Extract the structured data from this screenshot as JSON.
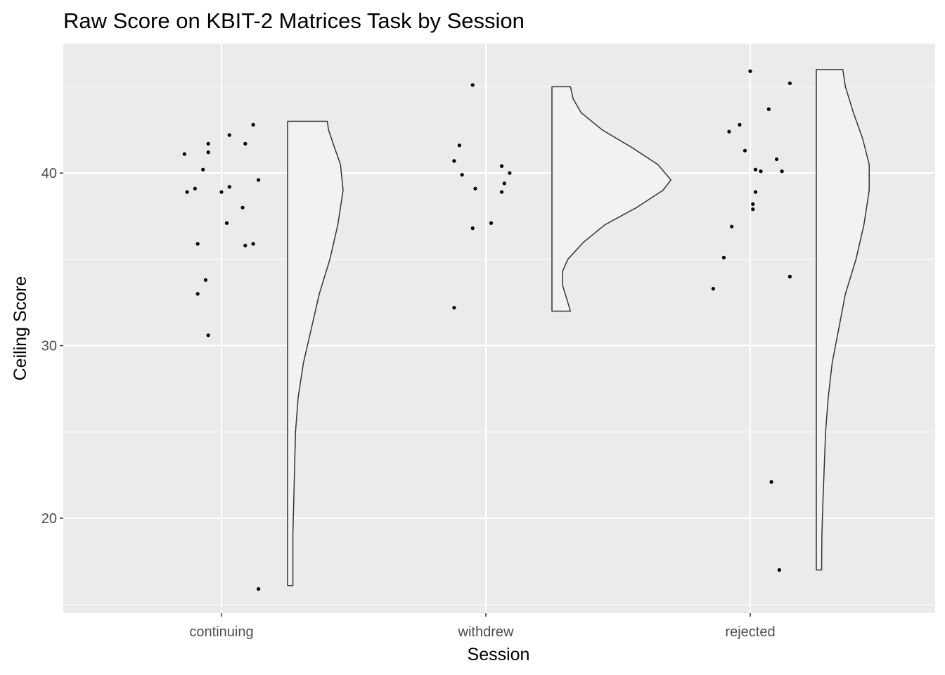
{
  "chart_data": {
    "type": "raincloud",
    "title": "Raw Score on KBIT-2 Matrices Task by Session",
    "xlabel": "Session",
    "ylabel": "Ceiling Score",
    "categories": [
      "continuing",
      "withdrew",
      "rejected"
    ],
    "ylim": [
      14.5,
      47.5
    ],
    "yticks": [
      20,
      30,
      40
    ],
    "grid": true,
    "legend": "none",
    "colors": {
      "panel_background": "#ebebeb",
      "grid_line": "#ffffff",
      "violin_fill": "#f2f2f2",
      "violin_outline": "#333333",
      "point": "#000000"
    },
    "series": [
      {
        "category": "continuing",
        "points": [
          {
            "x": -0.14,
            "y": 41.1
          },
          {
            "x": -0.13,
            "y": 38.9
          },
          {
            "x": -0.1,
            "y": 39.1
          },
          {
            "x": -0.09,
            "y": 35.9
          },
          {
            "x": -0.09,
            "y": 33.0
          },
          {
            "x": -0.07,
            "y": 40.2
          },
          {
            "x": -0.06,
            "y": 33.8
          },
          {
            "x": -0.05,
            "y": 41.7
          },
          {
            "x": -0.05,
            "y": 41.2
          },
          {
            "x": -0.05,
            "y": 30.6
          },
          {
            "x": 0.0,
            "y": 38.9
          },
          {
            "x": 0.02,
            "y": 37.1
          },
          {
            "x": 0.03,
            "y": 39.2
          },
          {
            "x": 0.03,
            "y": 42.2
          },
          {
            "x": 0.08,
            "y": 38.0
          },
          {
            "x": 0.09,
            "y": 35.8
          },
          {
            "x": 0.09,
            "y": 41.7
          },
          {
            "x": 0.12,
            "y": 42.8
          },
          {
            "x": 0.12,
            "y": 35.9
          },
          {
            "x": 0.14,
            "y": 39.6
          },
          {
            "x": 0.14,
            "y": 15.9
          }
        ],
        "density_profile": [
          {
            "y": 16.1,
            "w": 0.02
          },
          {
            "y": 17.0,
            "w": 0.02
          },
          {
            "y": 19.0,
            "w": 0.02
          },
          {
            "y": 22.0,
            "w": 0.025
          },
          {
            "y": 25.0,
            "w": 0.03
          },
          {
            "y": 27.0,
            "w": 0.04
          },
          {
            "y": 29.0,
            "w": 0.06
          },
          {
            "y": 31.0,
            "w": 0.09
          },
          {
            "y": 33.0,
            "w": 0.12
          },
          {
            "y": 35.0,
            "w": 0.16
          },
          {
            "y": 37.0,
            "w": 0.19
          },
          {
            "y": 39.0,
            "w": 0.21
          },
          {
            "y": 40.5,
            "w": 0.2
          },
          {
            "y": 41.8,
            "w": 0.17
          },
          {
            "y": 42.5,
            "w": 0.155
          },
          {
            "y": 43.0,
            "w": 0.15
          }
        ]
      },
      {
        "category": "withdrew",
        "points": [
          {
            "x": -0.12,
            "y": 32.2
          },
          {
            "x": -0.12,
            "y": 40.7
          },
          {
            "x": -0.1,
            "y": 41.6
          },
          {
            "x": -0.09,
            "y": 39.9
          },
          {
            "x": -0.05,
            "y": 36.8
          },
          {
            "x": -0.05,
            "y": 45.1
          },
          {
            "x": -0.04,
            "y": 39.1
          },
          {
            "x": 0.02,
            "y": 37.1
          },
          {
            "x": 0.06,
            "y": 38.9
          },
          {
            "x": 0.06,
            "y": 40.4
          },
          {
            "x": 0.07,
            "y": 39.4
          },
          {
            "x": 0.09,
            "y": 40.0
          }
        ],
        "density_profile": [
          {
            "y": 32.0,
            "w": 0.07
          },
          {
            "y": 32.5,
            "w": 0.06
          },
          {
            "y": 33.5,
            "w": 0.04
          },
          {
            "y": 34.3,
            "w": 0.04
          },
          {
            "y": 35.0,
            "w": 0.06
          },
          {
            "y": 36.0,
            "w": 0.12
          },
          {
            "y": 37.0,
            "w": 0.2
          },
          {
            "y": 38.0,
            "w": 0.32
          },
          {
            "y": 39.0,
            "w": 0.42
          },
          {
            "y": 39.6,
            "w": 0.45
          },
          {
            "y": 40.5,
            "w": 0.4
          },
          {
            "y": 41.5,
            "w": 0.3
          },
          {
            "y": 42.5,
            "w": 0.19
          },
          {
            "y": 43.5,
            "w": 0.11
          },
          {
            "y": 44.3,
            "w": 0.08
          },
          {
            "y": 45.0,
            "w": 0.07
          }
        ]
      },
      {
        "category": "rejected",
        "points": [
          {
            "x": -0.14,
            "y": 33.3
          },
          {
            "x": -0.1,
            "y": 35.1
          },
          {
            "x": -0.08,
            "y": 42.4
          },
          {
            "x": -0.07,
            "y": 36.9
          },
          {
            "x": -0.04,
            "y": 42.8
          },
          {
            "x": -0.02,
            "y": 41.3
          },
          {
            "x": 0.0,
            "y": 45.9
          },
          {
            "x": 0.01,
            "y": 38.2
          },
          {
            "x": 0.01,
            "y": 37.9
          },
          {
            "x": 0.02,
            "y": 38.9
          },
          {
            "x": 0.02,
            "y": 40.2
          },
          {
            "x": 0.04,
            "y": 40.1
          },
          {
            "x": 0.07,
            "y": 43.7
          },
          {
            "x": 0.08,
            "y": 22.1
          },
          {
            "x": 0.1,
            "y": 40.8
          },
          {
            "x": 0.11,
            "y": 17.0
          },
          {
            "x": 0.12,
            "y": 40.1
          },
          {
            "x": 0.15,
            "y": 34.0
          },
          {
            "x": 0.15,
            "y": 45.2
          }
        ],
        "density_profile": [
          {
            "y": 17.0,
            "w": 0.02
          },
          {
            "y": 19.0,
            "w": 0.021
          },
          {
            "y": 21.0,
            "w": 0.025
          },
          {
            "y": 23.0,
            "w": 0.03
          },
          {
            "y": 25.0,
            "w": 0.035
          },
          {
            "y": 27.0,
            "w": 0.045
          },
          {
            "y": 29.0,
            "w": 0.06
          },
          {
            "y": 31.0,
            "w": 0.085
          },
          {
            "y": 33.0,
            "w": 0.11
          },
          {
            "y": 35.0,
            "w": 0.15
          },
          {
            "y": 37.0,
            "w": 0.18
          },
          {
            "y": 39.0,
            "w": 0.2
          },
          {
            "y": 40.5,
            "w": 0.2
          },
          {
            "y": 42.0,
            "w": 0.175
          },
          {
            "y": 43.5,
            "w": 0.14
          },
          {
            "y": 45.0,
            "w": 0.11
          },
          {
            "y": 46.0,
            "w": 0.1
          }
        ]
      }
    ]
  }
}
